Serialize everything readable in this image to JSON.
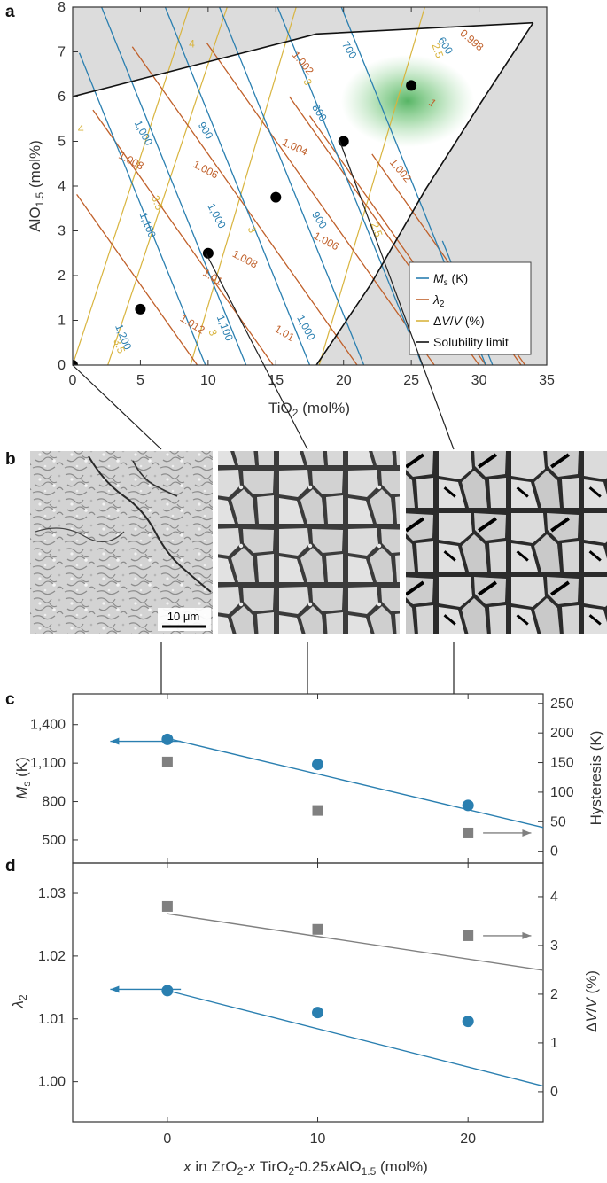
{
  "panels": {
    "a": "a",
    "b": "b",
    "c": "c",
    "d": "d"
  },
  "scale_bar": "10 μm",
  "colors": {
    "ms": "#2a7fb0",
    "lambda2": "#c0602a",
    "dvv": "#d8b43e",
    "limit": "#111111",
    "gray_region": "#dcdcdc",
    "hysteresis": "#808080",
    "green_zone": "#3aa84a"
  },
  "chart_data": [
    {
      "id": "a",
      "type": "scatter",
      "xlabel": "TiO2 (mol%)",
      "ylabel": "AlO1.5 (mol%)",
      "xlim": [
        0,
        35
      ],
      "ylim": [
        0,
        8
      ],
      "xticks": [
        "0",
        "5",
        "10",
        "15",
        "20",
        "25",
        "30",
        "35"
      ],
      "yticks": [
        "0",
        "1",
        "2",
        "3",
        "4",
        "5",
        "6",
        "7",
        "8"
      ],
      "legend": {
        "position": "bottom-right",
        "items": [
          "Ms (K)",
          "λ2",
          "ΔV/V (%)",
          "Solubility limit"
        ]
      },
      "points": [
        {
          "x": 0,
          "y": 0
        },
        {
          "x": 5,
          "y": 1.25
        },
        {
          "x": 10,
          "y": 2.5
        },
        {
          "x": 15,
          "y": 3.75
        },
        {
          "x": 20,
          "y": 5
        },
        {
          "x": 25,
          "y": 6.25
        }
      ],
      "solubility_limit": {
        "upper": [
          [
            0,
            6.0
          ],
          [
            18,
            7.4
          ],
          [
            34,
            7.65
          ]
        ],
        "lower": [
          [
            18,
            0
          ],
          [
            22,
            1.8
          ],
          [
            26,
            3.9
          ],
          [
            30,
            5.8
          ],
          [
            34,
            7.65
          ]
        ]
      },
      "contours": {
        "ms": [
          {
            "label": "1,200",
            "x0": 0.5,
            "x1": 9.8
          },
          {
            "label": "1,100",
            "x0": 1.7,
            "x1": 12.8
          },
          {
            "label": "1,000",
            "x0": 3.6,
            "x1": 17.5
          },
          {
            "label": "900",
            "x0": 7.6,
            "x1": 21.5
          },
          {
            "label": "800",
            "x0": 14.5,
            "x1": 25.8
          },
          {
            "label": "700",
            "x0": 19.8,
            "x1": 30.5
          },
          {
            "label": "600",
            "x0": 27.3,
            "x1": 31.0
          }
        ],
        "lambda2": [
          {
            "label": "1.012",
            "x0": 0.3,
            "x1": 9.2
          },
          {
            "label": "1.01",
            "x0": 1.5,
            "x1": 14.8
          },
          {
            "label": "1.008",
            "x0": 4.4,
            "x1": 21.0
          },
          {
            "label": "1.006",
            "x0": 9.9,
            "x1": 26.7
          },
          {
            "label": "1.004",
            "x0": 16.0,
            "x1": 30.0
          },
          {
            "label": "1.002",
            "x0": 17.5,
            "x1": 30.5
          },
          {
            "label": "1",
            "x0": 22.1,
            "x1": 33.1
          },
          {
            "label": "0.998",
            "x0": 29.8,
            "x1": 33.4
          }
        ],
        "dvv": [
          {
            "label": "4",
            "x0": 0,
            "x1": 8.6
          },
          {
            "label": "3.5",
            "x0": 2.6,
            "x1": 11.4
          },
          {
            "label": "3",
            "x0": 8.7,
            "x1": 16.5
          },
          {
            "label": "2.5",
            "x0": 18.2,
            "x1": 26.0
          }
        ]
      },
      "contour_labels": {
        "ms": [
          {
            "text": "1,200",
            "x": 3.5,
            "y": 0.6,
            "rot": 68
          },
          {
            "text": "1,100",
            "x": 5.3,
            "y": 3.1,
            "rot": 68
          },
          {
            "text": "1,100",
            "x": 11.0,
            "y": 0.8,
            "rot": 68
          },
          {
            "text": "1,000",
            "x": 5.0,
            "y": 5.15,
            "rot": 62
          },
          {
            "text": "1,000",
            "x": 10.4,
            "y": 3.3,
            "rot": 62
          },
          {
            "text": "1,000",
            "x": 17.0,
            "y": 0.8,
            "rot": 62
          },
          {
            "text": "900",
            "x": 9.6,
            "y": 5.2,
            "rot": 58
          },
          {
            "text": "900",
            "x": 18.0,
            "y": 3.2,
            "rot": 58
          },
          {
            "text": "800",
            "x": 18.0,
            "y": 5.6,
            "rot": 58
          },
          {
            "text": "700",
            "x": 20.2,
            "y": 7.0,
            "rot": 58
          },
          {
            "text": "600",
            "x": 27.3,
            "y": 7.1,
            "rot": 58
          }
        ],
        "lambda2": [
          {
            "text": "1.012",
            "x": 8.7,
            "y": 0.85,
            "rot": 32
          },
          {
            "text": "1.01",
            "x": 10.2,
            "y": 1.9,
            "rot": 32
          },
          {
            "text": "1.01",
            "x": 15.5,
            "y": 0.65,
            "rot": 32
          },
          {
            "text": "1.008",
            "x": 4.2,
            "y": 4.5,
            "rot": 28
          },
          {
            "text": "1.008",
            "x": 12.6,
            "y": 2.3,
            "rot": 28
          },
          {
            "text": "1.006",
            "x": 9.7,
            "y": 4.3,
            "rot": 28
          },
          {
            "text": "1.006",
            "x": 18.6,
            "y": 2.7,
            "rot": 28
          },
          {
            "text": "1.004",
            "x": 16.3,
            "y": 4.8,
            "rot": 25
          },
          {
            "text": "1.002",
            "x": 16.8,
            "y": 6.7,
            "rot": 50
          },
          {
            "text": "1.002",
            "x": 24.0,
            "y": 4.3,
            "rot": 50
          },
          {
            "text": "1",
            "x": 26.4,
            "y": 5.8,
            "rot": 40
          },
          {
            "text": "0.998",
            "x": 29.3,
            "y": 7.2,
            "rot": 40
          }
        ],
        "dvv": [
          {
            "text": "4",
            "x": 0.6,
            "y": 5.2,
            "rot": 0
          },
          {
            "text": "4",
            "x": 8.8,
            "y": 7.1,
            "rot": 0
          },
          {
            "text": "3.5",
            "x": 6.0,
            "y": 3.6,
            "rot": 70
          },
          {
            "text": "3.5",
            "x": 3.2,
            "y": 0.4,
            "rot": 70
          },
          {
            "text": "3",
            "x": 13.0,
            "y": 3.0,
            "rot": 70
          },
          {
            "text": "3",
            "x": 17.1,
            "y": 6.3,
            "rot": 70
          },
          {
            "text": "3",
            "x": 10.1,
            "y": 0.7,
            "rot": 70
          },
          {
            "text": "2.5",
            "x": 22.2,
            "y": 3.0,
            "rot": 70
          },
          {
            "text": "2.5",
            "x": 26.7,
            "y": 7.0,
            "rot": 70
          }
        ]
      }
    },
    {
      "id": "c",
      "type": "scatter",
      "ylabel": "Ms (K)",
      "y2label": "Hysteresis (K)",
      "xlim": [
        -6.3,
        25
      ],
      "ylim": [
        320,
        1640
      ],
      "yticks": [
        "1,400",
        "1,100",
        "800",
        "500"
      ],
      "y2lim": [
        -20.0,
        266.2
      ],
      "y2ticks": [
        "250",
        "200",
        "150",
        "100",
        "50",
        "0"
      ],
      "series": [
        {
          "name": "Ms",
          "axis": "left",
          "x": [
            0,
            10,
            20
          ],
          "values": [
            1285,
            1090,
            770
          ],
          "fit": [
            [
              0,
              1292
            ],
            [
              25,
              598
            ]
          ]
        },
        {
          "name": "Hysteresis",
          "axis": "right",
          "x": [
            0,
            10,
            20
          ],
          "values": [
            151,
            69,
            31
          ]
        }
      ],
      "arrows": [
        {
          "axis": "left",
          "x1": 0.9,
          "x2": -3.8,
          "y": 1270
        },
        {
          "axis": "right",
          "x1": 21.0,
          "x2": 24.2,
          "y": 31
        }
      ]
    },
    {
      "id": "d",
      "type": "scatter",
      "ylabel": "λ2",
      "y2label": "ΔV/V (%)",
      "xlabel": "x in ZrO2-x TirO2-0.25xAlO1.5 (mol%)",
      "xlim": [
        -6.3,
        25
      ],
      "xticks": [
        "0",
        "10",
        "20"
      ],
      "ylim": [
        0.9936,
        1.0348
      ],
      "yticks": [
        "1.03",
        "1.02",
        "1.01",
        "1.00"
      ],
      "y2lim": [
        -0.62,
        4.69
      ],
      "y2ticks": [
        "4",
        "3",
        "2",
        "1",
        "0"
      ],
      "series": [
        {
          "name": "λ2",
          "axis": "left",
          "x": [
            0,
            10,
            20
          ],
          "values": [
            1.0145,
            1.011,
            1.0096
          ],
          "fit": [
            [
              0,
              1.0145
            ],
            [
              25,
              0.9993
            ]
          ]
        },
        {
          "name": "ΔV/V",
          "axis": "right",
          "x": [
            0,
            10,
            20
          ],
          "values": [
            3.8,
            3.33,
            3.2
          ],
          "fit": [
            [
              0,
              3.65
            ],
            [
              25,
              2.49
            ]
          ]
        }
      ],
      "arrows": [
        {
          "axis": "left",
          "x1": 0.9,
          "x2": -3.8,
          "y": 1.0147
        },
        {
          "axis": "right",
          "x1": 21.0,
          "x2": 24.2,
          "y": 3.2
        }
      ]
    }
  ]
}
